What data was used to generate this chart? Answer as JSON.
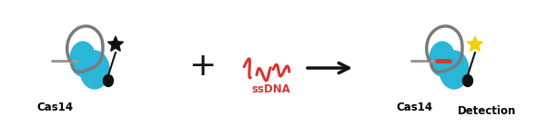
{
  "bg_color": "#ffffff",
  "cas14_color": "#29b6d8",
  "loop_color": "#7a7a7a",
  "star_black_color": "#111111",
  "star_yellow_color": "#f5d000",
  "ball_color": "#111111",
  "probe_gray_color": "#999999",
  "probe_red_color": "#e03030",
  "ssdna_color": "#d93535",
  "arrow_color": "#111111",
  "plus_color": "#111111",
  "label_cas14": "Cas14",
  "label_ssdna": "ssDNA",
  "label_detection": "Detection",
  "font_size": 8.5,
  "fig_w": 6.0,
  "fig_h": 1.5,
  "dpi": 100
}
